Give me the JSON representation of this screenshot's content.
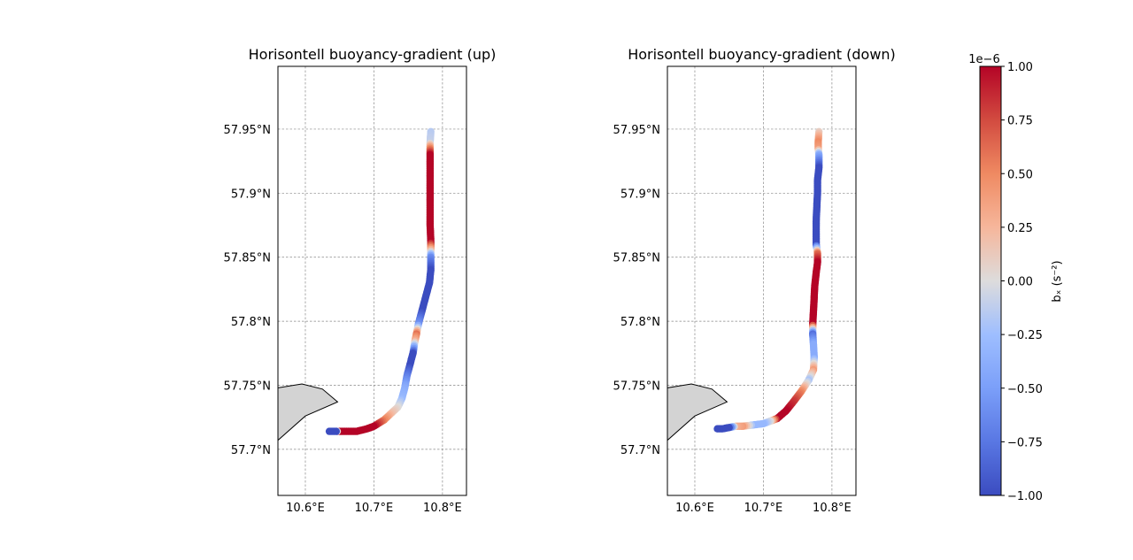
{
  "chart_data": [
    {
      "type": "scatter",
      "title": "Horisontell buoyancy-gradient (up)",
      "xlim": [
        10.56,
        10.835
      ],
      "ylim": [
        57.664,
        57.999
      ],
      "xticks": [
        10.6,
        10.7,
        10.8
      ],
      "xtick_labels": [
        "10.6°E",
        "10.7°E",
        "10.8°E"
      ],
      "yticks": [
        57.7,
        57.75,
        57.8,
        57.85,
        57.9,
        57.95
      ],
      "ytick_labels": [
        "57.7°N",
        "57.75°N",
        "57.8°N",
        "57.85°N",
        "57.9°N",
        "57.95°N"
      ],
      "grid": true,
      "land": [
        [
          10.56,
          57.748
        ],
        [
          10.595,
          57.751
        ],
        [
          10.625,
          57.747
        ],
        [
          10.647,
          57.737
        ],
        [
          10.6,
          57.726
        ],
        [
          10.56,
          57.707
        ]
      ],
      "track": [
        [
          10.783,
          57.948,
          -0.15
        ],
        [
          10.782,
          57.94,
          -0.1
        ],
        [
          10.782,
          57.935,
          0.5
        ],
        [
          10.782,
          57.93,
          1
        ],
        [
          10.782,
          57.91,
          1
        ],
        [
          10.782,
          57.89,
          1
        ],
        [
          10.782,
          57.875,
          1
        ],
        [
          10.783,
          57.862,
          1
        ],
        [
          10.783,
          57.856,
          0.3
        ],
        [
          10.783,
          57.85,
          -0.6
        ],
        [
          10.783,
          57.84,
          -1
        ],
        [
          10.781,
          57.83,
          -1
        ],
        [
          10.776,
          57.82,
          -1
        ],
        [
          10.77,
          57.808,
          -1
        ],
        [
          10.765,
          57.798,
          -0.6
        ],
        [
          10.762,
          57.79,
          0.6
        ],
        [
          10.76,
          57.785,
          0.3
        ],
        [
          10.757,
          57.775,
          -1
        ],
        [
          10.752,
          57.765,
          -1
        ],
        [
          10.748,
          57.757,
          -0.7
        ],
        [
          10.745,
          57.748,
          -0.4
        ],
        [
          10.741,
          57.74,
          -0.3
        ],
        [
          10.735,
          57.733,
          0.0
        ],
        [
          10.725,
          57.728,
          0.2
        ],
        [
          10.715,
          57.723,
          0.5
        ],
        [
          10.7,
          57.718,
          1
        ],
        [
          10.69,
          57.716,
          1
        ],
        [
          10.675,
          57.714,
          1
        ],
        [
          10.66,
          57.714,
          1
        ],
        [
          10.648,
          57.714,
          1
        ],
        [
          10.645,
          57.714,
          -1
        ],
        [
          10.635,
          57.714,
          -1
        ]
      ]
    },
    {
      "type": "scatter",
      "title": "Horisontell buoyancy-gradient (down)",
      "xlim": [
        10.56,
        10.835
      ],
      "ylim": [
        57.664,
        57.999
      ],
      "xticks": [
        10.6,
        10.7,
        10.8
      ],
      "xtick_labels": [
        "10.6°E",
        "10.7°E",
        "10.8°E"
      ],
      "yticks": [
        57.7,
        57.75,
        57.8,
        57.85,
        57.9,
        57.95
      ],
      "ytick_labels": [
        "57.7°N",
        "57.75°N",
        "57.8°N",
        "57.85°N",
        "57.9°N",
        "57.95°N"
      ],
      "grid": true,
      "land": [
        [
          10.56,
          57.748
        ],
        [
          10.595,
          57.751
        ],
        [
          10.625,
          57.747
        ],
        [
          10.647,
          57.737
        ],
        [
          10.6,
          57.726
        ],
        [
          10.56,
          57.707
        ]
      ],
      "track": [
        [
          10.781,
          57.948,
          0.1
        ],
        [
          10.78,
          57.94,
          0.5
        ],
        [
          10.78,
          57.935,
          0.4
        ],
        [
          10.781,
          57.93,
          -0.4
        ],
        [
          10.781,
          57.92,
          -1
        ],
        [
          10.779,
          57.91,
          -1
        ],
        [
          10.779,
          57.9,
          -1
        ],
        [
          10.778,
          57.89,
          -1
        ],
        [
          10.777,
          57.878,
          -1
        ],
        [
          10.777,
          57.866,
          -1
        ],
        [
          10.777,
          57.86,
          -1
        ],
        [
          10.779,
          57.853,
          0.6
        ],
        [
          10.779,
          57.846,
          1
        ],
        [
          10.777,
          57.838,
          1
        ],
        [
          10.775,
          57.828,
          1
        ],
        [
          10.774,
          57.818,
          1
        ],
        [
          10.773,
          57.808,
          1
        ],
        [
          10.772,
          57.798,
          1
        ],
        [
          10.772,
          57.79,
          -0.8
        ],
        [
          10.773,
          57.782,
          -0.4
        ],
        [
          10.774,
          57.772,
          -0.4
        ],
        [
          10.773,
          57.762,
          0.4
        ],
        [
          10.766,
          57.754,
          -0.2
        ],
        [
          10.755,
          57.745,
          0.5
        ],
        [
          10.745,
          57.738,
          0.8
        ],
        [
          10.733,
          57.73,
          1
        ],
        [
          10.72,
          57.724,
          1
        ],
        [
          10.71,
          57.722,
          0.0
        ],
        [
          10.7,
          57.72,
          -0.3
        ],
        [
          10.685,
          57.719,
          -0.3
        ],
        [
          10.67,
          57.718,
          0.4
        ],
        [
          10.66,
          57.718,
          0.3
        ],
        [
          10.65,
          57.717,
          -1
        ],
        [
          10.64,
          57.716,
          -1
        ],
        [
          10.633,
          57.716,
          -1
        ]
      ]
    }
  ],
  "colorbar": {
    "label": "bₓ (s⁻²)",
    "offset_text": "1e−6",
    "vmin": -1.0,
    "vmax": 1.0,
    "cmap": "coolwarm",
    "ticks": [
      1.0,
      0.75,
      0.5,
      0.25,
      0.0,
      -0.25,
      -0.5,
      -0.75,
      -1.0
    ],
    "tick_labels": [
      "1.00",
      "0.75",
      "0.50",
      "0.25",
      "0.00",
      "−0.25",
      "−0.50",
      "−0.75",
      "−1.00"
    ]
  }
}
